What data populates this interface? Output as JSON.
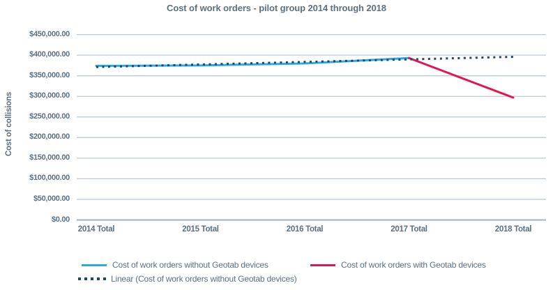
{
  "chart_data": {
    "type": "line",
    "title": "Cost of work orders - pilot group 2014 through 2018",
    "xlabel": "",
    "ylabel": "Cost of collisions",
    "categories": [
      "2014 Total",
      "2015 Total",
      "2016 Total",
      "2017 Total",
      "2018 Total"
    ],
    "y_axis": {
      "min": 0,
      "max": 450000,
      "tick_step": 50000,
      "tick_values": [
        450000,
        400000,
        350000,
        300000,
        250000,
        200000,
        150000,
        100000,
        50000,
        0
      ],
      "tick_labels": [
        "$450,000.00",
        "$400,000.00",
        "$350,000.00",
        "$300,000.00",
        "$250,000.00",
        "$200,000.00",
        "$150,000.00",
        "$100,000.00",
        "$50,000.00",
        "$0.00"
      ]
    },
    "grid": "horizontal-only",
    "legend_position": "bottom",
    "colors": {
      "without_geotab": "#29abe2",
      "with_geotab": "#e8124e",
      "linear_trend": "#1f4572",
      "gridline": "#bccad4",
      "axis_line": "#a0b2c0",
      "text": "#5b7083"
    },
    "series": [
      {
        "name": "Cost of work orders without Geotab devices",
        "style": "solid",
        "color": "#29abe2",
        "years": [
          2014,
          2015,
          2016,
          2017
        ],
        "values": [
          374000,
          375000,
          380000,
          393000
        ]
      },
      {
        "name": "Cost of work orders with Geotab devices",
        "style": "solid",
        "color": "#e8124e",
        "years": [
          2017,
          2018
        ],
        "values": [
          393000,
          297000
        ]
      },
      {
        "name": "Linear (Cost of work orders without Geotab devices)",
        "style": "dotted",
        "color": "#1f4572",
        "years": [
          2014,
          2018
        ],
        "values": [
          371200,
          396000
        ]
      }
    ]
  }
}
